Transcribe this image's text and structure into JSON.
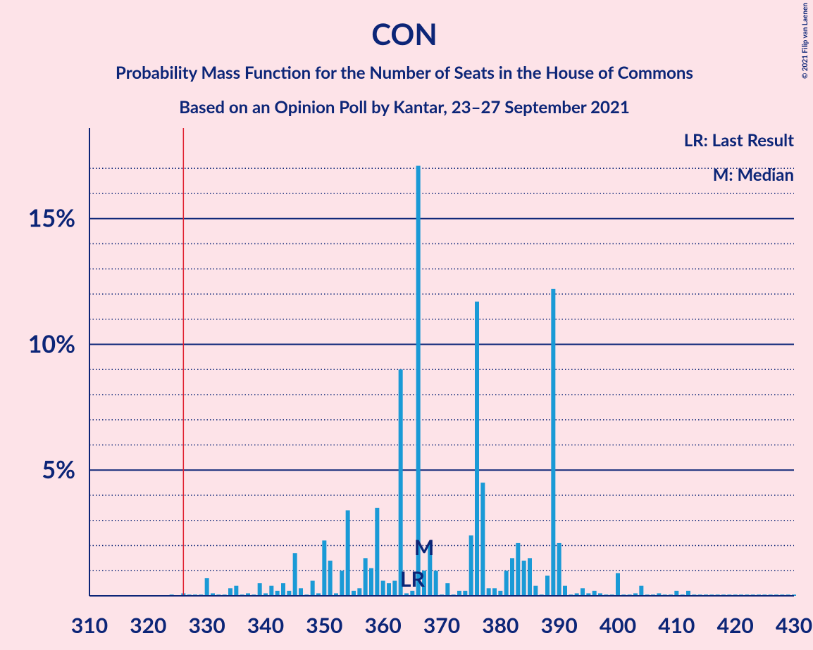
{
  "chart_data": {
    "type": "bar",
    "title": "CON",
    "subtitle": "Probability Mass Function for the Number of Seats in the House of Commons",
    "subtitle2": "Based on an Opinion Poll by Kantar, 23–27 September 2021",
    "copyright": "© 2021 Filip van Laenen",
    "legend": [
      "LR: Last Result",
      "M: Median"
    ],
    "x": [
      310,
      311,
      312,
      313,
      314,
      315,
      316,
      317,
      318,
      319,
      320,
      321,
      322,
      323,
      324,
      325,
      326,
      327,
      328,
      329,
      330,
      331,
      332,
      333,
      334,
      335,
      336,
      337,
      338,
      339,
      340,
      341,
      342,
      343,
      344,
      345,
      346,
      347,
      348,
      349,
      350,
      351,
      352,
      353,
      354,
      355,
      356,
      357,
      358,
      359,
      360,
      361,
      362,
      363,
      364,
      365,
      366,
      367,
      368,
      369,
      370,
      371,
      372,
      373,
      374,
      375,
      376,
      377,
      378,
      379,
      380,
      381,
      382,
      383,
      384,
      385,
      386,
      387,
      388,
      389,
      390,
      391,
      392,
      393,
      394,
      395,
      396,
      397,
      398,
      399,
      400,
      401,
      402,
      403,
      404,
      405,
      406,
      407,
      408,
      409,
      410,
      411,
      412,
      413,
      414,
      415,
      416,
      417,
      418,
      419,
      420,
      421,
      422,
      423,
      424,
      425,
      426,
      427,
      428,
      429,
      430
    ],
    "values": [
      0,
      0,
      0,
      0,
      0,
      0,
      0,
      0,
      0,
      0,
      0,
      0,
      0,
      0,
      0.05,
      0,
      0.1,
      0.05,
      0.05,
      0.05,
      0.7,
      0.1,
      0.05,
      0.05,
      0.3,
      0.4,
      0.05,
      0.1,
      0.05,
      0.5,
      0.1,
      0.4,
      0.2,
      0.5,
      0.2,
      1.7,
      0.3,
      0.05,
      0.6,
      0.1,
      2.2,
      1.4,
      0.1,
      1.0,
      3.4,
      0.2,
      0.3,
      1.5,
      1.1,
      3.5,
      0.6,
      0.5,
      0.6,
      9.0,
      0.1,
      0.2,
      17.1,
      1.0,
      2.1,
      1.0,
      0.05,
      0.5,
      0.05,
      0.2,
      0.2,
      2.4,
      11.7,
      4.5,
      0.3,
      0.3,
      0.2,
      1.0,
      1.5,
      2.1,
      1.4,
      1.5,
      0.4,
      0.05,
      0.8,
      12.2,
      2.1,
      0.4,
      0.05,
      0.1,
      0.3,
      0.1,
      0.2,
      0.1,
      0.05,
      0.05,
      0.9,
      0.05,
      0.05,
      0.1,
      0.4,
      0.05,
      0.05,
      0.1,
      0.05,
      0.05,
      0.2,
      0.05,
      0.2,
      0.05,
      0.05,
      0.05,
      0.05,
      0.05,
      0.05,
      0.05,
      0.05,
      0.05,
      0.05,
      0.05,
      0.05,
      0.05,
      0.05,
      0.05,
      0.05,
      0.05,
      0.05
    ],
    "color": "#1a9ad6",
    "majority": 326,
    "last_result": {
      "x": 365,
      "label": "LR"
    },
    "median": {
      "x": 367,
      "label": "M"
    },
    "xlim": [
      310,
      430
    ],
    "xticks": [
      310,
      320,
      330,
      340,
      350,
      360,
      370,
      380,
      390,
      400,
      410,
      420,
      430
    ],
    "ylim": [
      0,
      18.6
    ],
    "yticks": [
      {
        "value": 5,
        "label": "5%"
      },
      {
        "value": 10,
        "label": "10%"
      },
      {
        "value": 15,
        "label": "15%"
      }
    ],
    "minor_yticks": [
      1,
      2,
      3,
      4,
      6,
      7,
      8,
      9,
      11,
      12,
      13,
      14,
      16,
      17
    ]
  }
}
